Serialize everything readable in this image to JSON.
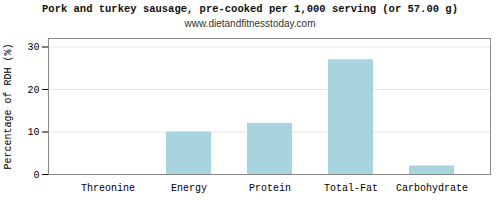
{
  "chart_data": {
    "type": "bar",
    "title": "Pork and turkey sausage, pre-cooked per 1,000 serving (or 57.00 g)",
    "subtitle": "www.dietandfitnesstoday.com",
    "categories": [
      "Threonine",
      "Energy",
      "Protein",
      "Total-Fat",
      "Carbohydrate"
    ],
    "values": [
      0,
      10,
      12,
      27,
      2
    ],
    "color": "#a8d4e0",
    "ylabel": "Percentage of RDH (%)",
    "ylim": [
      0,
      32
    ],
    "yticks": [
      0,
      10,
      20,
      30
    ],
    "grid": true
  }
}
